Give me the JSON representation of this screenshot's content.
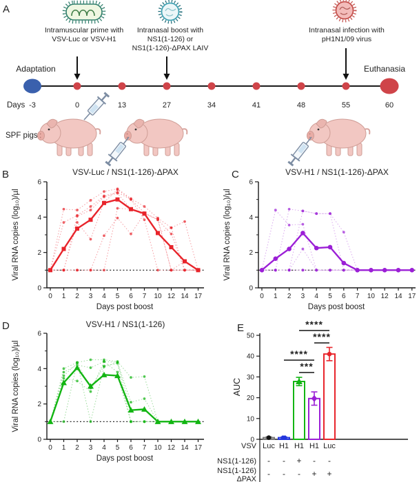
{
  "panelA": {
    "label": "A",
    "prime_caption_1": "Intramuscular prime with",
    "prime_caption_2": "VSV-Luc or VSV-H1",
    "boost_caption_1": "Intranasal boost with",
    "boost_caption_2": "NS1(1-126) or",
    "boost_caption_3": "NS1(1-126)-ΔPAX LAIV",
    "infection_caption_1": "Intranasal infection with",
    "infection_caption_2": "pH1N1/09 virus",
    "adaptation_label": "Adaptation",
    "euthanasia_label": "Euthanasia",
    "days_label": "Days",
    "day_values": [
      "-3",
      "0",
      "13",
      "27",
      "34",
      "41",
      "48",
      "55",
      "60"
    ],
    "spf_label": "SPF pigs",
    "icons": [
      "vsv-virion-icon",
      "laiv-virion-icon",
      "ph1n1-virion-icon"
    ],
    "colors": {
      "timeline_dot": "#cf4449",
      "adaptation_dot": "#3a60ad",
      "euthanasia_dot": "#cf4449"
    }
  },
  "chart_data": [
    {
      "panel": "B",
      "type": "line",
      "title": "VSV-Luc / NS1(1-126)-ΔPAX",
      "xlabel": "Days post boost",
      "ylabel": "Viral RNA copies (log₁₀)/µl",
      "ylim": [
        0,
        6
      ],
      "yticks": [
        0,
        2,
        4,
        6
      ],
      "yminor": [
        1,
        3,
        5
      ],
      "categories": [
        "0",
        "1",
        "2",
        "3",
        "4",
        "5",
        "6",
        "7",
        "10",
        "12",
        "14",
        "17"
      ],
      "baseline": 1,
      "color": "#e8242b",
      "light_color": "#f59aa0",
      "mean_marker": "square",
      "mean": [
        1,
        2.2,
        3.35,
        3.85,
        4.8,
        5.0,
        4.45,
        4.2,
        3.1,
        2.3,
        1.5,
        1
      ],
      "individuals": [
        [
          1,
          4.45,
          4.4,
          4.95,
          5.45,
          5.6,
          5.05,
          4.6,
          3.95,
          3.4,
          3.75,
          1
        ],
        [
          1,
          3.7,
          4.1,
          4.6,
          5.2,
          5.4,
          5.0,
          4.25,
          3.85,
          3.05,
          1,
          1
        ],
        [
          1,
          1,
          4.05,
          4.4,
          5.15,
          5.35,
          4.45,
          4.2,
          3.9,
          1,
          1,
          1
        ],
        [
          1,
          1,
          3.7,
          2.75,
          4.85,
          5.55,
          5.0,
          3.85,
          1,
          1,
          1,
          1
        ],
        [
          1,
          1,
          1,
          1,
          2.95,
          3.95,
          3.05,
          4.2,
          3.1,
          3.4,
          1,
          1
        ],
        [
          1,
          1,
          1,
          1,
          1,
          4.5,
          4.45,
          4.2,
          3.85,
          1,
          1.5,
          1
        ]
      ]
    },
    {
      "panel": "C",
      "type": "line",
      "title": "VSV-H1 / NS1(1-126)-ΔPAX",
      "xlabel": "Days post boost",
      "ylabel": "Viral RNA copies (log₁₀)/µl",
      "ylim": [
        0,
        6
      ],
      "yticks": [
        0,
        2,
        4,
        6
      ],
      "yminor": [
        1,
        3,
        5
      ],
      "categories": [
        "0",
        "1",
        "2",
        "3",
        "4",
        "5",
        "6",
        "7",
        "10",
        "12",
        "14",
        "17"
      ],
      "baseline": 1,
      "color": "#9b1fd6",
      "light_color": "#d9a8ee",
      "mean_marker": "circle",
      "mean": [
        1,
        1.65,
        2.2,
        3.1,
        2.25,
        2.3,
        1.4,
        1,
        1,
        1,
        1,
        1
      ],
      "individuals": [
        [
          1,
          4.4,
          3.55,
          3.6,
          1,
          1,
          1,
          1,
          1,
          1,
          1,
          1
        ],
        [
          1,
          1,
          4.45,
          4.35,
          4.2,
          4.2,
          3.15,
          1,
          1,
          1,
          1,
          1
        ],
        [
          1,
          1,
          1,
          2.2,
          1,
          1,
          1,
          1,
          1,
          1,
          1,
          1
        ],
        [
          1,
          1,
          1,
          4.35,
          4.2,
          4.2,
          1,
          1,
          1,
          1,
          1,
          1
        ],
        [
          1,
          1,
          1,
          1,
          1,
          1,
          1,
          1,
          1,
          1,
          1,
          1
        ],
        [
          1,
          1,
          1,
          1,
          1,
          1,
          1,
          1,
          1,
          1,
          1,
          1
        ]
      ]
    },
    {
      "panel": "D",
      "type": "line",
      "title": "VSV-H1 / NS1(1-126)",
      "xlabel": "Days post boost",
      "ylabel": "Viral RNA copies (log₁₀)/µl",
      "ylim": [
        0,
        6
      ],
      "yticks": [
        0,
        2,
        4,
        6
      ],
      "yminor": [
        1,
        3,
        5
      ],
      "categories": [
        "0",
        "1",
        "2",
        "3",
        "4",
        "5",
        "6",
        "7",
        "10",
        "12",
        "14",
        "17"
      ],
      "baseline": 1,
      "color": "#12b512",
      "light_color": "#9bdb9b",
      "mean_marker": "triangle",
      "mean": [
        1,
        3.2,
        4.05,
        3.0,
        3.65,
        3.6,
        1.65,
        1.7,
        1,
        1,
        1,
        1
      ],
      "individuals": [
        [
          1,
          4.0,
          4.35,
          4.5,
          4.5,
          4.4,
          3.5,
          3.55,
          1,
          1,
          1,
          1
        ],
        [
          1,
          3.8,
          4.2,
          4.05,
          4.4,
          4.35,
          2.1,
          2.3,
          1,
          1,
          1,
          1
        ],
        [
          1,
          3.6,
          4.3,
          2.9,
          4.15,
          4.3,
          1,
          1,
          1,
          1,
          1,
          1
        ],
        [
          1,
          3.45,
          3.3,
          2.7,
          4.4,
          3.8,
          1,
          1,
          1,
          1,
          1,
          1
        ],
        [
          1,
          1,
          4.35,
          1,
          4.1,
          4.35,
          1.65,
          1.7,
          1,
          1,
          1,
          1
        ],
        [
          1,
          3.2,
          4.05,
          3.0,
          3.65,
          3.6,
          1,
          1,
          1,
          1,
          1,
          1
        ]
      ]
    },
    {
      "panel": "E",
      "type": "bar",
      "ylabel": "AUC",
      "ylim": [
        0,
        50
      ],
      "yticks": [
        0,
        10,
        20,
        30,
        40,
        50
      ],
      "vsv_row_label": "VSV",
      "ns1_row_label": "NS1(1-126)",
      "dpax_row_label_1": "NS1(1-126)",
      "dpax_row_label_2": "ΔPAX",
      "bars": [
        {
          "vsv": "Luc",
          "ns1_126": "-",
          "ns1_dpax": "-",
          "value": 0.8,
          "err": 0.4,
          "color": "#777777",
          "marker": "circle",
          "marker_color": "#111111"
        },
        {
          "vsv": "H1",
          "ns1_126": "-",
          "ns1_dpax": "-",
          "value": 0.8,
          "err": 0.4,
          "color": "#2336dd",
          "marker": "square",
          "marker_color": "#2336dd"
        },
        {
          "vsv": "H1",
          "ns1_126": "+",
          "ns1_dpax": "-",
          "value": 27.8,
          "err": 2.0,
          "color": "#12b512",
          "marker": "triangle",
          "marker_color": "#12b512"
        },
        {
          "vsv": "H1",
          "ns1_126": "-",
          "ns1_dpax": "+",
          "value": 19.6,
          "err": 3.2,
          "color": "#9b1fd6",
          "marker": "diamond",
          "marker_color": "#9b1fd6"
        },
        {
          "vsv": "Luc",
          "ns1_126": "-",
          "ns1_dpax": "+",
          "value": 41.0,
          "err": 3.2,
          "color": "#e8242b",
          "marker": "circle",
          "marker_color": "#e8242b"
        }
      ],
      "significance": [
        {
          "bars": [
            2,
            4
          ],
          "stars": "****"
        },
        {
          "bars": [
            3,
            4
          ],
          "stars": "****"
        },
        {
          "bars": [
            1,
            3
          ],
          "stars": "****"
        },
        {
          "bars": [
            2,
            3
          ],
          "stars": "***"
        }
      ]
    }
  ]
}
